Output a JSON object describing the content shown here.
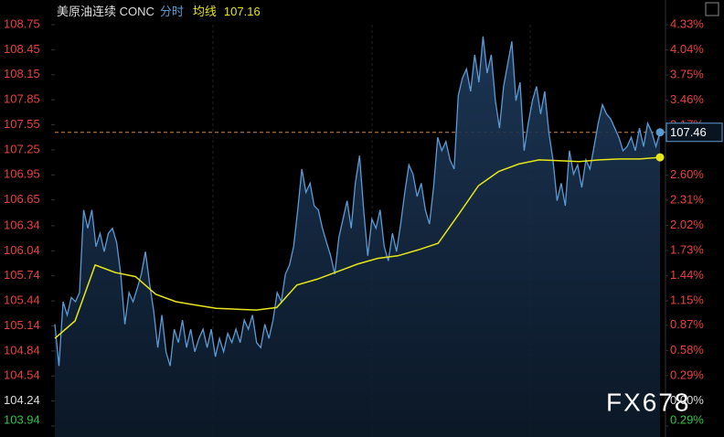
{
  "chart_data": {
    "type": "line",
    "title": "美原油连续 CONC",
    "avg_label": "均线",
    "avg_value": 107.16,
    "last_price": 107.46,
    "watermark": "FX678",
    "ylim": [
      103.94,
      108.75
    ],
    "yticks": [
      108.75,
      108.45,
      108.15,
      107.85,
      107.55,
      107.25,
      106.95,
      106.65,
      106.34,
      106.04,
      105.74,
      105.44,
      105.14,
      104.84,
      104.54,
      104.24,
      103.94
    ],
    "y2lim": [
      -0.29,
      4.33
    ],
    "y2ticks": [
      {
        "value": 4.33,
        "label": "4.33%"
      },
      {
        "value": 4.04,
        "label": "4.04%"
      },
      {
        "value": 3.75,
        "label": "3.75%"
      },
      {
        "value": 3.46,
        "label": "3.46%"
      },
      {
        "value": 3.17,
        "label": "3.17%"
      },
      {
        "value": 2.6,
        "label": "2.60%"
      },
      {
        "value": 2.31,
        "label": "2.31%"
      },
      {
        "value": 2.02,
        "label": "2.02%"
      },
      {
        "value": 1.73,
        "label": "1.73%"
      },
      {
        "value": 1.44,
        "label": "1.44%"
      },
      {
        "value": 1.15,
        "label": "1.15%"
      },
      {
        "value": 0.87,
        "label": "0.87%"
      },
      {
        "value": 0.58,
        "label": "0.58%"
      },
      {
        "value": 0.29,
        "label": "0.29%"
      },
      {
        "value": 0,
        "label": "0.00%"
      },
      {
        "value": -0.29,
        "label": "0.29%"
      }
    ],
    "up_color": "#e8423f",
    "down_color": "#2fc64a",
    "flat_color": "#dddddd",
    "series": [
      {
        "name": "分时",
        "color": "#5b9bd5",
        "values": [
          105.16,
          104.66,
          105.43,
          105.27,
          105.48,
          105.43,
          105.54,
          106.53,
          106.31,
          106.53,
          106.09,
          106.25,
          106.03,
          106.25,
          106.31,
          106.14,
          105.76,
          105.16,
          105.54,
          105.43,
          105.59,
          105.76,
          106.03,
          105.65,
          105.32,
          104.88,
          105.27,
          104.83,
          104.66,
          105.1,
          104.94,
          105.21,
          104.88,
          105.1,
          104.83,
          104.99,
          105.1,
          104.88,
          105.1,
          104.77,
          104.99,
          104.83,
          105.05,
          104.94,
          105.1,
          104.94,
          105.21,
          105.1,
          105.27,
          104.94,
          104.88,
          105.16,
          104.99,
          105.21,
          105.54,
          105.43,
          105.76,
          105.87,
          106.09,
          106.53,
          107.02,
          106.74,
          106.85,
          106.58,
          106.53,
          106.31,
          106.14,
          105.98,
          105.76,
          106.2,
          106.42,
          106.64,
          106.31,
          106.85,
          107.18,
          106.53,
          105.98,
          106.42,
          106.31,
          106.53,
          106.09,
          105.92,
          106.25,
          106.03,
          106.36,
          106.74,
          107.07,
          106.96,
          106.69,
          106.85,
          106.53,
          106.36,
          106.8,
          107.4,
          107.24,
          107.35,
          107.13,
          107.02,
          107.9,
          108.11,
          108.22,
          107.95,
          108.39,
          108.06,
          108.61,
          108.17,
          108.39,
          107.84,
          107.51,
          108.01,
          108.28,
          108.55,
          107.84,
          108.06,
          107.24,
          107.57,
          107.84,
          108.01,
          107.68,
          107.95,
          107.46,
          107.13,
          106.64,
          106.85,
          106.58,
          107.24,
          106.96,
          107.07,
          106.8,
          107.13,
          107.02,
          107.29,
          107.57,
          107.79,
          107.68,
          107.62,
          107.51,
          107.4,
          107.24,
          107.29,
          107.4,
          107.24,
          107.51,
          107.29,
          107.57,
          107.46,
          107.29,
          107.46
        ]
      },
      {
        "name": "均线",
        "color": "#e6e619",
        "values": [
          104.99,
          105.2,
          105.87,
          105.78,
          105.73,
          105.52,
          105.43,
          105.39,
          105.35,
          105.34,
          105.33,
          105.36,
          105.63,
          105.7,
          105.79,
          105.88,
          105.95,
          105.98,
          106.05,
          106.13,
          106.47,
          106.82,
          106.99,
          107.08,
          107.13,
          107.12,
          107.11,
          107.13,
          107.14,
          107.14,
          107.16
        ]
      }
    ]
  }
}
